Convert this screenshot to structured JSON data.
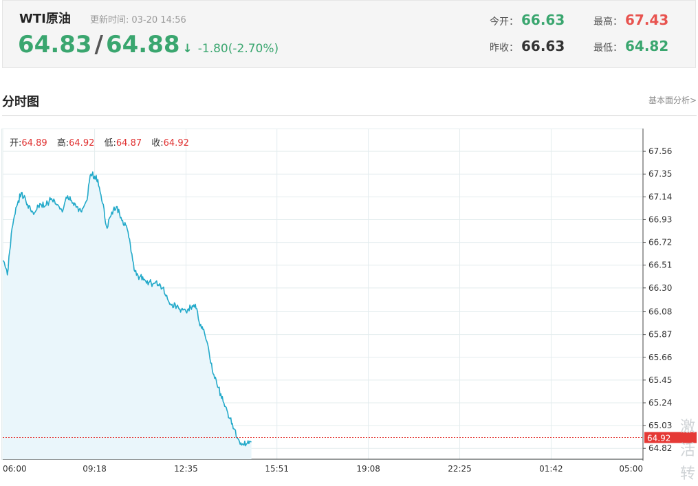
{
  "header": {
    "title": "WTI原油",
    "update_label": "更新时间:",
    "update_time": "03-20 14:56",
    "bid": "64.83",
    "ask": "64.88",
    "direction_arrow": "↓",
    "change": "-1.80(-2.70%)",
    "open_label": "今开：",
    "open": "66.63",
    "prev_close_label": "昨收：",
    "prev_close": "66.63",
    "high_label": "最高：",
    "high": "67.43",
    "low_label": "最低：",
    "low": "64.82"
  },
  "section": {
    "title": "分时图",
    "link": "基本面分析>"
  },
  "ohlc": {
    "open_label": "开:",
    "open": "64.89",
    "high_label": "高:",
    "high": "64.92",
    "low_label": "低:",
    "low": "64.87",
    "close_label": "收:",
    "close": "64.92"
  },
  "watermark": "激活转",
  "colors": {
    "line": "#22a9c9",
    "fill": "#eaf6fb",
    "grid": "#e3ecee",
    "current_price": "#e53935",
    "up": "#e8534f",
    "down": "#3aa66f"
  },
  "chart_data": {
    "type": "line",
    "x_ticks": [
      "06:00",
      "09:18",
      "12:35",
      "15:51",
      "19:08",
      "22:25",
      "01:42",
      "05:00"
    ],
    "y_ticks": [
      "67.56",
      "67.35",
      "67.14",
      "66.93",
      "66.72",
      "66.51",
      "66.30",
      "66.08",
      "65.87",
      "65.66",
      "65.45",
      "65.24",
      "65.03",
      "64.82"
    ],
    "ylim": [
      64.72,
      67.77
    ],
    "current_price": "64.92",
    "series": [
      {
        "x": [
          "06:00",
          "06:10",
          "06:20",
          "06:30",
          "06:40",
          "06:50",
          "07:00",
          "07:10",
          "07:20",
          "07:30",
          "07:40",
          "07:50",
          "08:00",
          "08:10",
          "08:20",
          "08:30",
          "08:40",
          "08:50",
          "09:00",
          "09:10",
          "09:18",
          "09:25",
          "09:35",
          "09:45",
          "09:55",
          "10:05",
          "10:15",
          "10:25",
          "10:35",
          "10:45",
          "10:55",
          "11:05",
          "11:15",
          "11:25",
          "11:35",
          "11:45",
          "11:55",
          "12:05",
          "12:15",
          "12:25",
          "12:35",
          "12:45",
          "12:55",
          "13:05",
          "13:15",
          "13:25",
          "13:35",
          "13:45",
          "13:55",
          "14:05",
          "14:15",
          "14:25",
          "14:35",
          "14:45",
          "14:56"
        ],
        "values": [
          66.55,
          66.42,
          66.85,
          67.05,
          67.18,
          67.1,
          67.02,
          67.0,
          67.08,
          67.05,
          67.1,
          67.12,
          67.06,
          67.02,
          67.15,
          67.08,
          67.05,
          67.0,
          67.1,
          67.35,
          67.33,
          67.3,
          67.08,
          66.85,
          67.0,
          67.05,
          66.95,
          66.88,
          66.7,
          66.45,
          66.4,
          66.38,
          66.35,
          66.34,
          66.33,
          66.3,
          66.2,
          66.15,
          66.13,
          66.1,
          66.08,
          66.12,
          66.15,
          65.95,
          65.88,
          65.7,
          65.5,
          65.38,
          65.25,
          65.15,
          65.05,
          64.92,
          64.85,
          64.86,
          64.88
        ]
      }
    ]
  }
}
